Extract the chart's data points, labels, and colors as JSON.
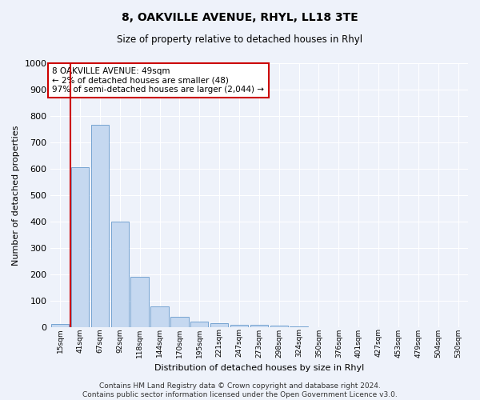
{
  "title": "8, OAKVILLE AVENUE, RHYL, LL18 3TE",
  "subtitle": "Size of property relative to detached houses in Rhyl",
  "xlabel": "Distribution of detached houses by size in Rhyl",
  "ylabel": "Number of detached properties",
  "bar_color": "#c5d8f0",
  "bar_edge_color": "#6699cc",
  "background_color": "#eef2fa",
  "grid_color": "#ffffff",
  "categories": [
    "15sqm",
    "41sqm",
    "67sqm",
    "92sqm",
    "118sqm",
    "144sqm",
    "170sqm",
    "195sqm",
    "221sqm",
    "247sqm",
    "273sqm",
    "298sqm",
    "324sqm",
    "350sqm",
    "376sqm",
    "401sqm",
    "427sqm",
    "453sqm",
    "479sqm",
    "504sqm",
    "530sqm"
  ],
  "values": [
    13,
    605,
    768,
    400,
    190,
    78,
    38,
    20,
    14,
    10,
    10,
    7,
    2,
    1,
    1,
    1,
    0,
    0,
    0,
    0,
    0
  ],
  "ylim": [
    0,
    1000
  ],
  "yticks": [
    0,
    100,
    200,
    300,
    400,
    500,
    600,
    700,
    800,
    900,
    1000
  ],
  "vline_x": 0.5,
  "vline_color": "#cc0000",
  "annotation_text": "8 OAKVILLE AVENUE: 49sqm\n← 2% of detached houses are smaller (48)\n97% of semi-detached houses are larger (2,044) →",
  "annotation_box_color": "#ffffff",
  "annotation_box_edge": "#cc0000",
  "footnote": "Contains HM Land Registry data © Crown copyright and database right 2024.\nContains public sector information licensed under the Open Government Licence v3.0."
}
